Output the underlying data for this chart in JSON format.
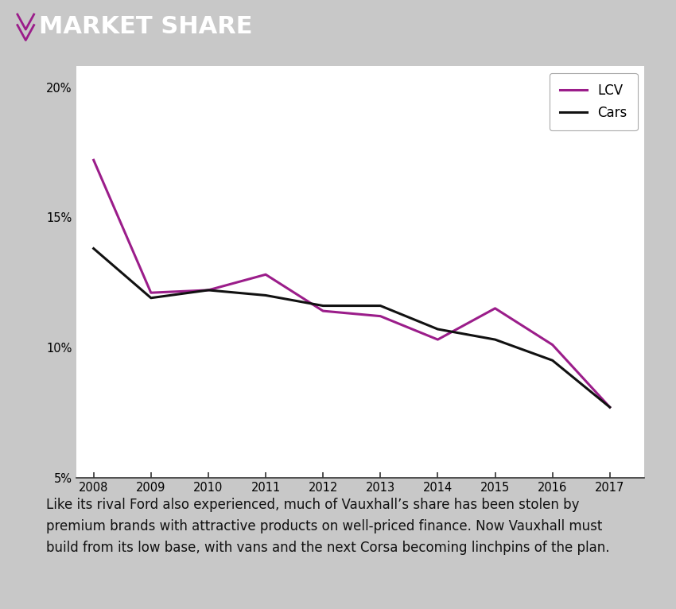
{
  "years": [
    2008,
    2009,
    2010,
    2011,
    2012,
    2013,
    2014,
    2015,
    2016,
    2017
  ],
  "lcv": [
    0.172,
    0.121,
    0.122,
    0.128,
    0.114,
    0.112,
    0.103,
    0.115,
    0.101,
    0.077
  ],
  "cars": [
    0.138,
    0.119,
    0.122,
    0.12,
    0.116,
    0.116,
    0.107,
    0.103,
    0.095,
    0.077
  ],
  "lcv_color": "#9B1D8A",
  "cars_color": "#111111",
  "header_bg": "#2d2d2d",
  "header_text": "#ffffff",
  "header_title": "MARKET SHARE",
  "outer_bg": "#c8c8c8",
  "plot_bg": "#ffffff",
  "ylim_min": 0.05,
  "ylim_max": 0.208,
  "yticks": [
    0.05,
    0.1,
    0.15,
    0.2
  ],
  "ytick_labels": [
    "5%",
    "10%",
    "15%",
    "20%"
  ],
  "line_width": 2.2,
  "annotation": "Like its rival Ford also experienced, much of Vauxhall’s share has been stolen by\npremium brands with attractive products on well-priced finance. Now Vauxhall must\nbuild from its low base, with vans and the next Corsa becoming linchpins of the plan.",
  "annotation_fontsize": 12,
  "chevron_color": "#9B1D8A"
}
